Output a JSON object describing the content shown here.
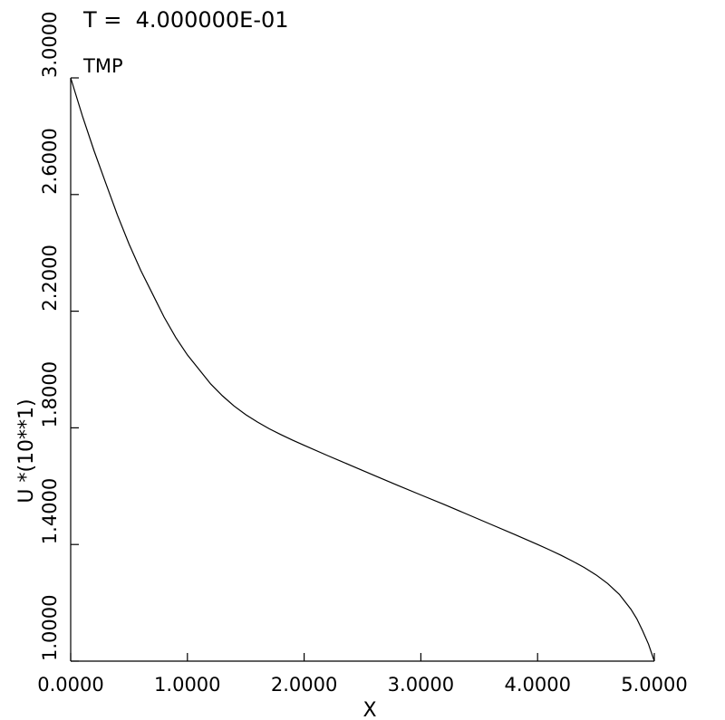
{
  "chart_data": {
    "type": "line",
    "title": "T =  4.000000E-01",
    "subtitle": "TMP",
    "xlabel": "X",
    "ylabel": "U *(10**1)",
    "xlim": [
      0,
      5
    ],
    "ylim": [
      1,
      3
    ],
    "xticks": [
      0,
      1,
      2,
      3,
      4,
      5
    ],
    "xtick_labels": [
      "0.0000",
      "1.0000",
      "2.0000",
      "3.0000",
      "4.0000",
      "5.0000"
    ],
    "yticks": [
      1.0,
      1.4,
      1.8,
      2.2,
      2.6,
      3.0
    ],
    "ytick_labels": [
      "1.0000",
      "1.4000",
      "1.8000",
      "2.2000",
      "2.6000",
      "3.0000"
    ],
    "grid": false,
    "series": [
      {
        "x": [
          0.0,
          0.1,
          0.2,
          0.3,
          0.4,
          0.5,
          0.6,
          0.7,
          0.8,
          0.9,
          1.0,
          1.1,
          1.2,
          1.3,
          1.4,
          1.5,
          1.6,
          1.7,
          1.8,
          1.9,
          2.0,
          2.2,
          2.4,
          2.6,
          2.8,
          3.0,
          3.2,
          3.4,
          3.6,
          3.8,
          4.0,
          4.1,
          4.2,
          4.3,
          4.4,
          4.5,
          4.6,
          4.7,
          4.8,
          4.85,
          4.9,
          4.95,
          5.0
        ],
        "y": [
          3.0,
          2.87,
          2.75,
          2.64,
          2.53,
          2.43,
          2.34,
          2.26,
          2.18,
          2.11,
          2.05,
          2.0,
          1.95,
          1.91,
          1.875,
          1.845,
          1.82,
          1.797,
          1.777,
          1.758,
          1.74,
          1.705,
          1.671,
          1.637,
          1.603,
          1.57,
          1.537,
          1.503,
          1.469,
          1.435,
          1.4,
          1.382,
          1.363,
          1.343,
          1.321,
          1.296,
          1.266,
          1.229,
          1.178,
          1.145,
          1.104,
          1.058,
          1.0
        ]
      }
    ]
  }
}
